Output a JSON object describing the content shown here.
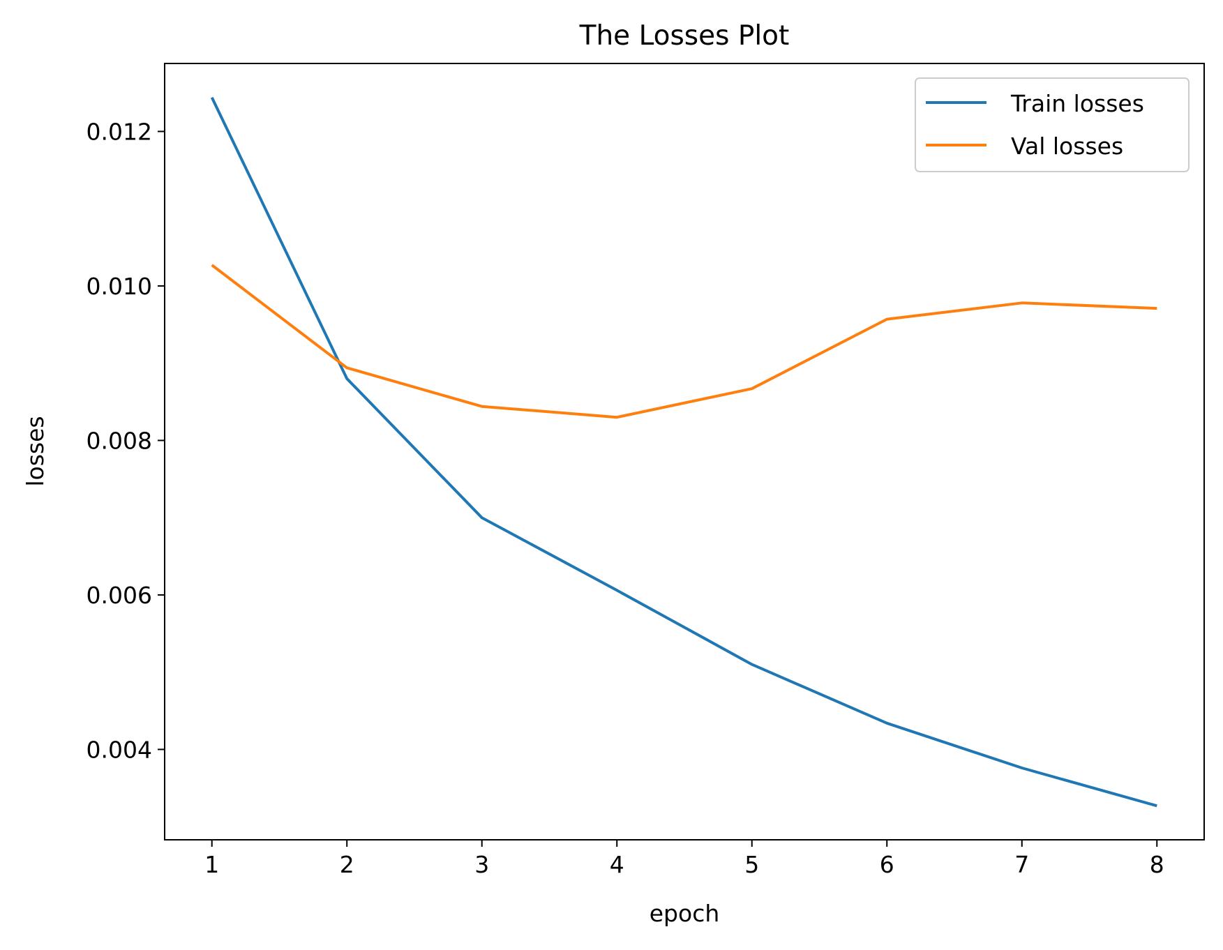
{
  "chart_data": {
    "type": "line",
    "title": "The Losses Plot",
    "xlabel": "epoch",
    "ylabel": "losses",
    "xlim": [
      0.65,
      8.35
    ],
    "ylim": [
      0.00283,
      0.01288
    ],
    "x_ticks": [
      1,
      2,
      3,
      4,
      5,
      6,
      7,
      8
    ],
    "x_tick_labels": [
      "1",
      "2",
      "3",
      "4",
      "5",
      "6",
      "7",
      "8"
    ],
    "y_ticks": [
      0.004,
      0.006,
      0.008,
      0.01,
      0.012
    ],
    "y_tick_labels": [
      "0.004",
      "0.006",
      "0.008",
      "0.010",
      "0.012"
    ],
    "grid": false,
    "legend_position": "top-right",
    "x": [
      1,
      2,
      3,
      4,
      5,
      6,
      7,
      8
    ],
    "series": [
      {
        "name": "Train losses",
        "color": "#1f77b4",
        "values": [
          0.01244,
          0.0088,
          0.007,
          0.00606,
          0.0051,
          0.00434,
          0.00376,
          0.00327
        ]
      },
      {
        "name": "Val losses",
        "color": "#ff7f0e",
        "values": [
          0.01027,
          0.00894,
          0.00844,
          0.0083,
          0.00867,
          0.00957,
          0.00978,
          0.00971
        ]
      }
    ]
  }
}
